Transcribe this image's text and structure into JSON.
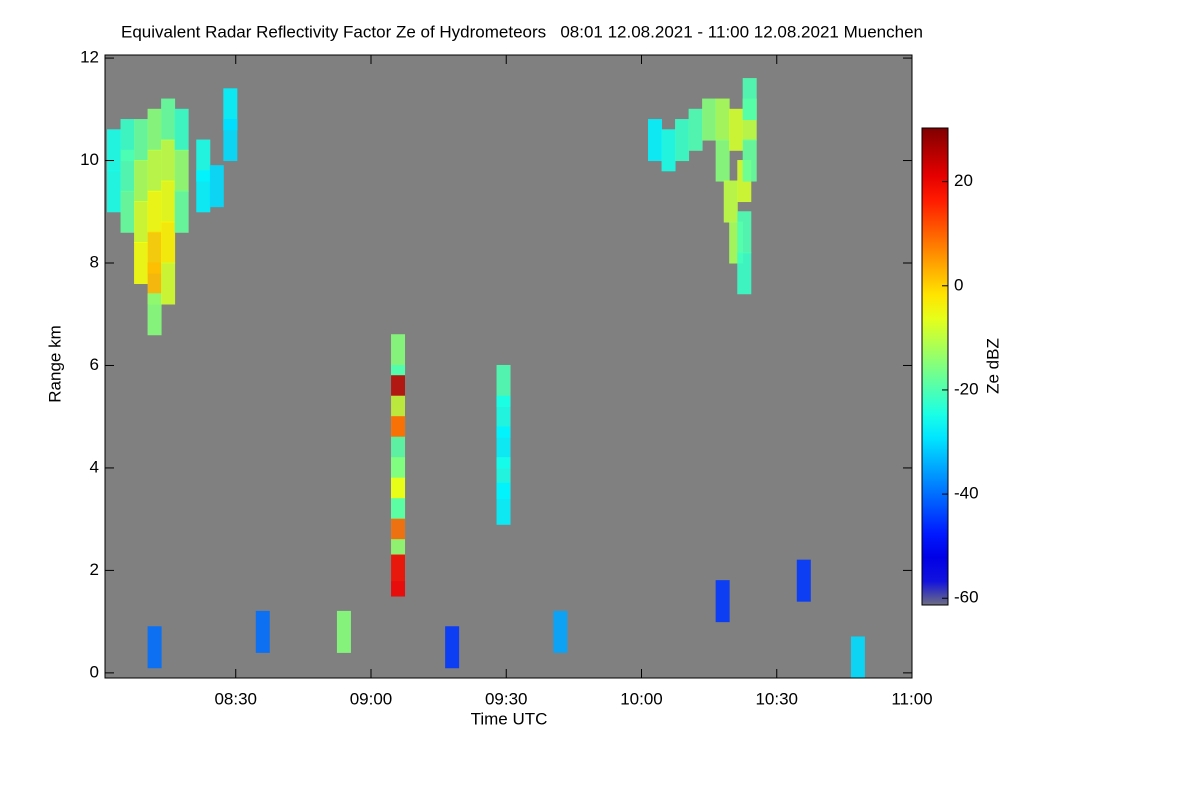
{
  "chart_data": {
    "type": "heatmap",
    "title": "Equivalent Radar Reflectivity Factor Ze of Hydrometeors   08:01 12.08.2021 - 11:00 12.08.2021 Muenchen",
    "x_label": "Time UTC",
    "y_label": "Range km",
    "color_label": "Ze dBZ",
    "xlim": [
      8.0167,
      11.0
    ],
    "xticks": [
      {
        "value": 8.5,
        "label": "08:30"
      },
      {
        "value": 9.0,
        "label": "09:00"
      },
      {
        "value": 9.5,
        "label": "09:30"
      },
      {
        "value": 10.0,
        "label": "10:00"
      },
      {
        "value": 10.5,
        "label": "10:30"
      },
      {
        "value": 11.0,
        "label": "11:00"
      }
    ],
    "ylim": [
      -0.1,
      12.06
    ],
    "yticks": [
      0,
      2,
      4,
      6,
      8,
      10,
      12
    ],
    "clim": [
      -61.3,
      30.3
    ],
    "cticks": [
      20,
      0,
      -20,
      -40,
      -60
    ],
    "background": "#808080",
    "x": [
      8.05,
      8.05,
      8.1,
      8.1,
      8.1,
      8.15,
      8.15,
      8.15,
      8.15,
      8.2,
      8.2,
      8.2,
      8.2,
      8.2,
      8.2,
      8.25,
      8.25,
      8.25,
      8.25,
      8.25,
      8.3,
      8.3,
      8.3,
      8.38,
      8.38,
      8.48,
      8.48,
      8.43,
      10.05,
      10.1,
      10.15,
      10.2,
      10.25,
      10.3,
      10.3,
      10.33,
      10.35,
      10.35,
      10.38,
      10.38,
      10.4,
      10.4,
      10.4,
      10.38,
      9.1,
      9.1,
      9.1,
      9.1,
      9.1,
      9.1,
      9.1,
      9.1,
      9.1,
      9.1,
      9.1,
      9.1,
      9.49,
      9.49,
      9.49,
      9.49,
      9.49,
      8.6,
      8.9,
      9.3,
      9.7,
      10.3,
      10.6,
      8.2,
      10.8
    ],
    "y": [
      10.2,
      9.4,
      10.4,
      9.8,
      9.0,
      10.4,
      9.6,
      8.8,
      8.0,
      10.6,
      9.8,
      9.0,
      8.2,
      7.6,
      7.0,
      10.8,
      10.0,
      9.2,
      8.4,
      7.6,
      10.6,
      9.8,
      9.0,
      10.0,
      9.4,
      11.0,
      10.4,
      9.5,
      10.4,
      10.2,
      10.4,
      10.6,
      10.8,
      10.8,
      10.0,
      9.2,
      10.6,
      8.4,
      9.6,
      7.8,
      10.8,
      10.0,
      11.2,
      8.6,
      6.2,
      5.6,
      5.4,
      5.0,
      4.6,
      4.2,
      3.8,
      3.4,
      3.0,
      2.6,
      2.2,
      1.9,
      5.6,
      5.0,
      4.4,
      3.8,
      3.3,
      0.8,
      0.8,
      0.5,
      0.8,
      1.4,
      1.8,
      0.5,
      0.3
    ],
    "values": [
      -25,
      -25,
      -22,
      -20,
      -18,
      -18,
      -12,
      -8,
      -5,
      -15,
      -10,
      -5,
      0,
      2,
      -15,
      -18,
      -10,
      -6,
      -3,
      -8,
      -22,
      -14,
      -18,
      -25,
      -28,
      -28,
      -30,
      -30,
      -28,
      -25,
      -22,
      -20,
      -15,
      -12,
      -15,
      -10,
      -8,
      -12,
      -8,
      -22,
      -10,
      -18,
      -20,
      -20,
      -15,
      -20,
      25,
      -10,
      10,
      -20,
      -15,
      -5,
      -20,
      10,
      -15,
      20,
      -20,
      -25,
      -28,
      -25,
      -28,
      -40,
      -15,
      -45,
      -35,
      -45,
      -45,
      -40,
      -30
    ]
  }
}
